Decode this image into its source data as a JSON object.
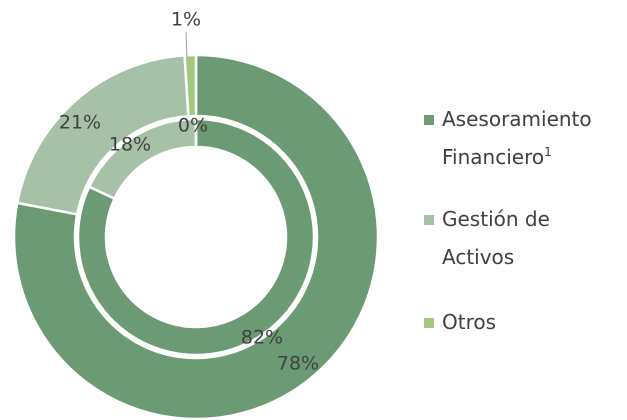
{
  "chart_data": {
    "type": "donut",
    "categories": [
      "Asesoramiento Financiero",
      "Gestión de Activos",
      "Otros"
    ],
    "category_notes": [
      "1",
      null,
      null
    ],
    "colors": [
      "#6b9a74",
      "#a7c1a9",
      "#a3c97f"
    ],
    "rings": [
      {
        "values": [
          78,
          21,
          1
        ],
        "value_labels": [
          "78%",
          "21%",
          "1%"
        ]
      },
      {
        "values": [
          82,
          18,
          0
        ],
        "value_labels": [
          "82%",
          "18%",
          "0%"
        ]
      }
    ]
  }
}
